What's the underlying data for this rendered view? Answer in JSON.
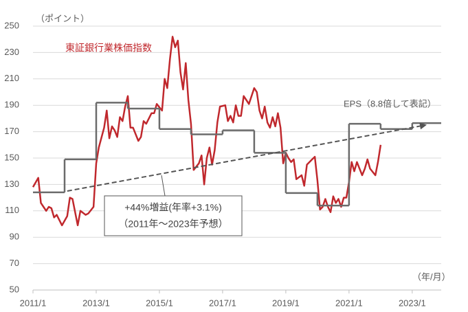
{
  "chart_data": {
    "type": "line",
    "y_unit": "（ポイント）",
    "x_unit": "（年/月）",
    "xlim": [
      "2011/1",
      "2023/12"
    ],
    "xticks": [
      "2011/1",
      "2013/1",
      "2015/1",
      "2017/1",
      "2019/1",
      "2021/1",
      "2023/1"
    ],
    "ylim": [
      50,
      250
    ],
    "yticks": [
      50,
      70,
      90,
      110,
      130,
      150,
      170,
      190,
      210,
      230,
      250
    ],
    "grid": true,
    "series": [
      {
        "name": "東証銀行業株価指数",
        "color": "#c0282d",
        "x": [
          "2011/1",
          "2011/3",
          "2011/4",
          "2011/5",
          "2011/6",
          "2011/7",
          "2011/8",
          "2011/9",
          "2011/10",
          "2011/12",
          "2012/2",
          "2012/3",
          "2012/4",
          "2012/6",
          "2012/7",
          "2012/9",
          "2012/10",
          "2012/12",
          "2013/1",
          "2013/2",
          "2013/4",
          "2013/5",
          "2013/6",
          "2013/7",
          "2013/8",
          "2013/9",
          "2013/10",
          "2013/11",
          "2013/12",
          "2014/1",
          "2014/2",
          "2014/3",
          "2014/5",
          "2014/6",
          "2014/7",
          "2014/8",
          "2014/10",
          "2014/11",
          "2014/12",
          "2015/2",
          "2015/3",
          "2015/4",
          "2015/5",
          "2015/6",
          "2015/7",
          "2015/8",
          "2015/9",
          "2015/10",
          "2015/11",
          "2015/12",
          "2016/1",
          "2016/2",
          "2016/4",
          "2016/5",
          "2016/6",
          "2016/7",
          "2016/8",
          "2016/9",
          "2016/10",
          "2016/11",
          "2016/12",
          "2017/2",
          "2017/3",
          "2017/4",
          "2017/5",
          "2017/6",
          "2017/7",
          "2017/8",
          "2017/9",
          "2017/10",
          "2017/11",
          "2018/1",
          "2018/2",
          "2018/3",
          "2018/4",
          "2018/5",
          "2018/6",
          "2018/7",
          "2018/8",
          "2018/9",
          "2018/10",
          "2018/11",
          "2018/12",
          "2019/1",
          "2019/2",
          "2019/3",
          "2019/4",
          "2019/5",
          "2019/7",
          "2019/8",
          "2019/9",
          "2019/11",
          "2019/12",
          "2020/1",
          "2020/2",
          "2020/3",
          "2020/4",
          "2020/5",
          "2020/6",
          "2020/7",
          "2020/8",
          "2020/9",
          "2020/10",
          "2020/11",
          "2020/12",
          "2021/1",
          "2021/2",
          "2021/3",
          "2021/4",
          "2021/5",
          "2021/6",
          "2021/7",
          "2021/8",
          "2021/9",
          "2021/11",
          "2021/12",
          "2022/1"
        ],
        "values": [
          128,
          135,
          116,
          113,
          110,
          113,
          112,
          105,
          107,
          99,
          106,
          120,
          119,
          99,
          110,
          107,
          108,
          113,
          146,
          158,
          173,
          186,
          165,
          174,
          171,
          166,
          181,
          178,
          189,
          197,
          173,
          173,
          163,
          166,
          178,
          176,
          184,
          184,
          191,
          186,
          210,
          203,
          225,
          242,
          234,
          239,
          215,
          202,
          222,
          194,
          176,
          141,
          146,
          152,
          130,
          150,
          158,
          145,
          156,
          177,
          189,
          190,
          178,
          182,
          177,
          190,
          182,
          182,
          197,
          194,
          191,
          203,
          200,
          186,
          180,
          189,
          177,
          173,
          181,
          174,
          184,
          173,
          146,
          154,
          150,
          147,
          149,
          134,
          137,
          129,
          145,
          149,
          151,
          133,
          111,
          113,
          119,
          113,
          109,
          121,
          116,
          119,
          113,
          120,
          120,
          132,
          147,
          140,
          147,
          142,
          137,
          142,
          149,
          142,
          137,
          147,
          160
        ]
      },
      {
        "name": "EPS（8.8倍して表記）",
        "color": "#6b6b6b",
        "step": true,
        "x": [
          "2011/1",
          "2012/1",
          "2013/1",
          "2014/1",
          "2015/1",
          "2016/1",
          "2017/1",
          "2018/1",
          "2019/1",
          "2020/1",
          "2021/1",
          "2022/1",
          "2023/1"
        ],
        "values": [
          124,
          149,
          192,
          187.5,
          172,
          168,
          171,
          154,
          123.5,
          114,
          176,
          172,
          176.5
        ]
      }
    ],
    "trend": {
      "x": [
        "2012/2",
        "2023/6"
      ],
      "values": [
        125,
        175
      ],
      "color": "#555555"
    },
    "annotations": [
      "+44%増益(年率+3.1%)",
      "（2011年～2023年予想）"
    ]
  }
}
